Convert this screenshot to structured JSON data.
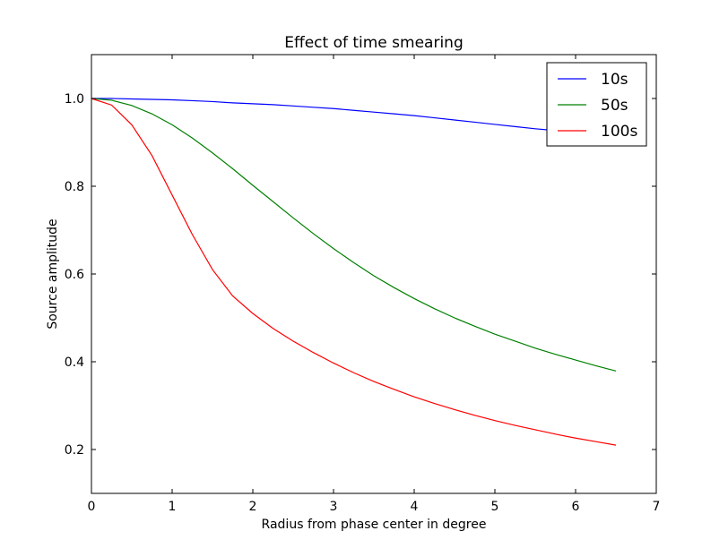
{
  "chart_data": {
    "type": "line",
    "title": "Effect of time smearing",
    "xlabel": "Radius from phase center in degree",
    "ylabel": "Source amplitude",
    "xlim": [
      0,
      7
    ],
    "ylim": [
      0.1,
      1.1
    ],
    "xticks": [
      0,
      1,
      2,
      3,
      4,
      5,
      6,
      7
    ],
    "yticks": [
      0.2,
      0.4,
      0.6,
      0.8,
      1.0
    ],
    "xtick_labels": [
      "0",
      "1",
      "2",
      "3",
      "4",
      "5",
      "6",
      "7"
    ],
    "ytick_labels": [
      "0.2",
      "0.4",
      "0.6",
      "0.8",
      "1.0"
    ],
    "grid": false,
    "legend_position": "top-right",
    "x": [
      0,
      0.25,
      0.5,
      0.75,
      1.0,
      1.25,
      1.5,
      1.75,
      2.0,
      2.25,
      2.5,
      2.75,
      3.0,
      3.25,
      3.5,
      3.75,
      4.0,
      4.25,
      4.5,
      4.75,
      5.0,
      5.25,
      5.5,
      5.75,
      6.0,
      6.25,
      6.5
    ],
    "series": [
      {
        "name": "10s",
        "color": "#0000ff",
        "values": [
          1.0,
          1.0,
          0.999,
          0.998,
          0.997,
          0.995,
          0.993,
          0.99,
          0.988,
          0.986,
          0.983,
          0.98,
          0.977,
          0.973,
          0.969,
          0.965,
          0.961,
          0.956,
          0.951,
          0.946,
          0.941,
          0.936,
          0.931,
          0.927,
          0.923,
          0.92,
          0.917
        ]
      },
      {
        "name": "50s",
        "color": "#008000",
        "values": [
          1.0,
          0.996,
          0.984,
          0.965,
          0.94,
          0.91,
          0.876,
          0.84,
          0.802,
          0.765,
          0.728,
          0.692,
          0.658,
          0.626,
          0.596,
          0.569,
          0.544,
          0.521,
          0.5,
          0.481,
          0.463,
          0.447,
          0.431,
          0.417,
          0.404,
          0.391,
          0.379
        ]
      },
      {
        "name": "100s",
        "color": "#ff0000",
        "values": [
          1.0,
          0.985,
          0.94,
          0.87,
          0.78,
          0.69,
          0.61,
          0.55,
          0.51,
          0.476,
          0.447,
          0.421,
          0.397,
          0.375,
          0.355,
          0.337,
          0.32,
          0.305,
          0.291,
          0.278,
          0.266,
          0.255,
          0.245,
          0.235,
          0.226,
          0.218,
          0.21
        ]
      }
    ]
  }
}
